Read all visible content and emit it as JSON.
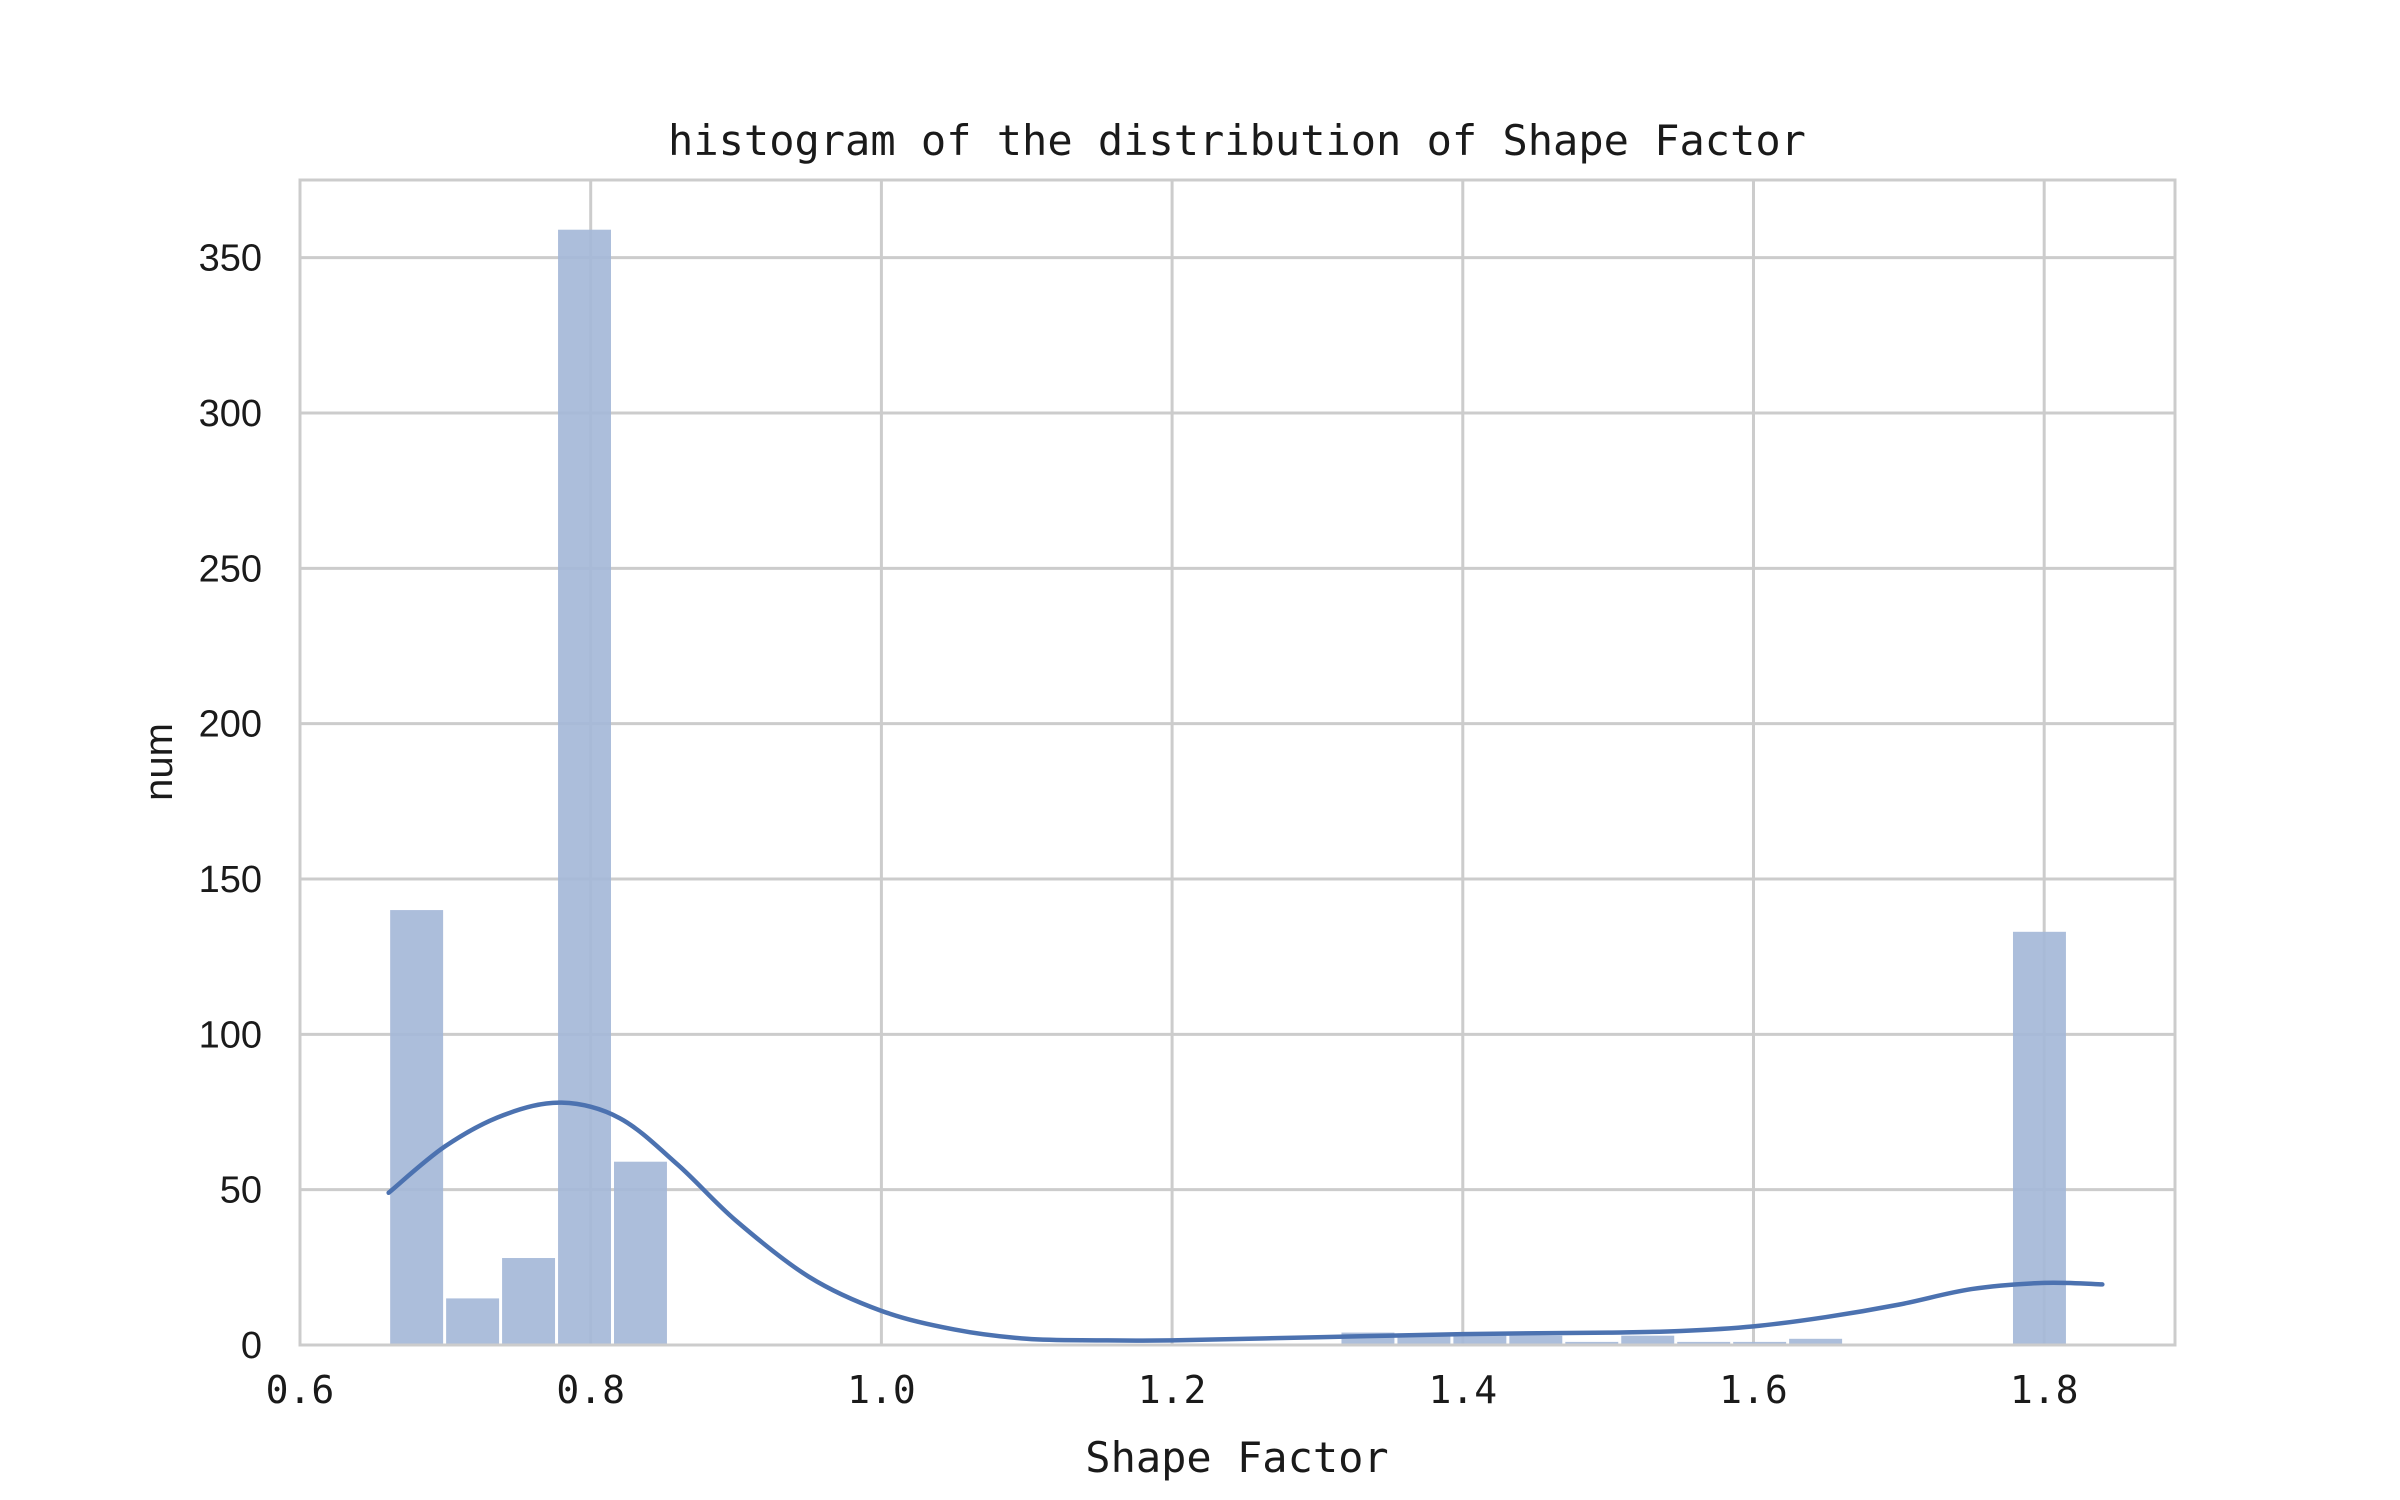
{
  "chart_data": {
    "type": "bar",
    "title": "histogram of the distribution of Shape Factor",
    "xlabel": "Shape Factor",
    "ylabel": "num",
    "xlim": [
      0.6,
      1.89
    ],
    "ylim": [
      0,
      375
    ],
    "xticks": [
      0.6,
      0.8,
      1.0,
      1.2,
      1.4,
      1.6,
      1.8
    ],
    "xtick_labels": [
      "0.6",
      "0.8",
      "1.0",
      "1.2",
      "1.4",
      "1.6",
      "1.8"
    ],
    "yticks": [
      0,
      50,
      100,
      150,
      200,
      250,
      300,
      350
    ],
    "ytick_labels": [
      "0",
      "50",
      "100",
      "150",
      "200",
      "250",
      "300",
      "350"
    ],
    "grid": true,
    "bin_edges": [
      0.661,
      0.6995,
      0.738,
      0.7765,
      0.815,
      0.8535,
      0.892,
      0.9305,
      0.969,
      1.0075,
      1.046,
      1.0845,
      1.123,
      1.1615,
      1.2,
      1.2385,
      1.277,
      1.3155,
      1.354,
      1.3925,
      1.431,
      1.4695,
      1.508,
      1.5465,
      1.585,
      1.6235,
      1.662,
      1.7005,
      1.739,
      1.7775,
      1.816,
      1.8545
    ],
    "counts": [
      140,
      15,
      28,
      359,
      59,
      0,
      0,
      0,
      0,
      0,
      0,
      0,
      0,
      0,
      0,
      0,
      0,
      4,
      3,
      3,
      3,
      1,
      3,
      1,
      1,
      2,
      0,
      0,
      0,
      133,
      0
    ],
    "kde": {
      "x": [
        0.661,
        0.7,
        0.74,
        0.78,
        0.82,
        0.86,
        0.9,
        0.95,
        1.0,
        1.05,
        1.1,
        1.15,
        1.2,
        1.3,
        1.4,
        1.5,
        1.55,
        1.6,
        1.65,
        1.7,
        1.75,
        1.8,
        1.84
      ],
      "y": [
        49,
        64,
        74,
        78,
        73,
        58,
        40,
        22,
        11,
        5,
        2,
        1.5,
        1.5,
        2.5,
        3.5,
        4,
        4.5,
        6,
        9,
        13,
        18,
        20,
        19.5
      ]
    },
    "colors": {
      "bar": "#a5b8d8",
      "line": "#4c72b0",
      "grid": "#cccccc",
      "frame": "#cccccc"
    }
  }
}
